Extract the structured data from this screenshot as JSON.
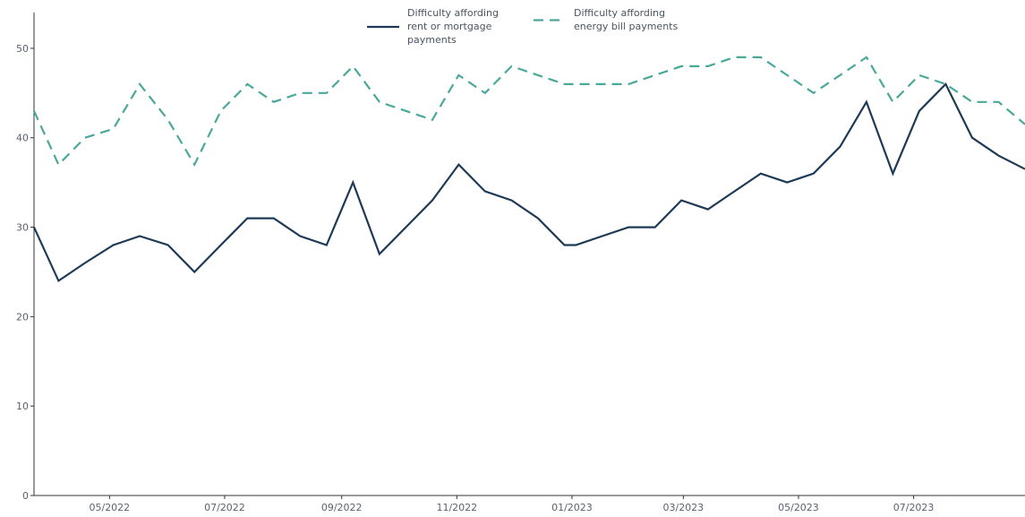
{
  "chart_data": {
    "type": "line",
    "x": [
      "2022-03-22",
      "2022-04-04",
      "2022-04-18",
      "2022-05-03",
      "2022-05-17",
      "2022-06-01",
      "2022-06-15",
      "2022-06-29",
      "2022-07-13",
      "2022-07-27",
      "2022-08-10",
      "2022-08-24",
      "2022-09-07",
      "2022-09-21",
      "2022-10-05",
      "2022-10-19",
      "2022-11-02",
      "2022-11-16",
      "2022-11-30",
      "2022-12-14",
      "2022-12-28",
      "2023-01-03",
      "2023-01-17",
      "2023-01-31",
      "2023-02-14",
      "2023-02-28",
      "2023-03-14",
      "2023-03-28",
      "2023-04-11",
      "2023-04-25",
      "2023-05-09",
      "2023-05-23",
      "2023-06-06",
      "2023-06-20",
      "2023-07-04",
      "2023-07-18",
      "2023-08-01",
      "2023-08-15",
      "2023-08-29"
    ],
    "series": [
      {
        "name": "Difficulty affording rent or mortgage payments",
        "style": "solid",
        "color": "#1e3a56",
        "values": [
          30,
          24,
          26,
          28,
          29,
          28,
          25,
          28,
          31,
          31,
          29,
          28,
          35,
          27,
          30,
          33,
          37,
          34,
          33,
          31,
          28,
          28,
          29,
          30,
          30,
          33,
          32,
          34,
          36,
          35,
          36,
          39,
          44,
          36,
          43,
          46,
          40,
          38,
          36.5
        ]
      },
      {
        "name": "Difficulty affording energy bill payments",
        "style": "dashed",
        "color": "#4aa89a",
        "values": [
          43,
          37,
          40,
          41,
          46,
          42,
          37,
          43,
          46,
          44,
          45,
          45,
          48,
          44,
          43,
          42,
          47,
          45,
          48,
          47,
          46,
          46,
          46,
          46,
          47,
          48,
          48,
          49,
          49,
          47,
          45,
          47,
          49,
          44,
          47,
          46,
          44,
          44,
          41.5
        ]
      }
    ],
    "legend": {
      "placement": "top-center",
      "labels": [
        [
          "Difficulty affording",
          "rent or mortgage",
          "payments"
        ],
        [
          "Difficulty affording",
          "energy bill payments"
        ]
      ]
    },
    "x_tick_labels": [
      "05/2022",
      "07/2022",
      "09/2022",
      "11/2022",
      "01/2023",
      "03/2023",
      "05/2023",
      "07/2023"
    ],
    "x_tick_dates": [
      "2022-05-01",
      "2022-07-01",
      "2022-09-01",
      "2022-11-01",
      "2023-01-01",
      "2023-03-01",
      "2023-05-01",
      "2023-07-01"
    ],
    "y_tick_labels": [
      "0",
      "10",
      "20",
      "30",
      "40",
      "50"
    ],
    "y_tick_values": [
      0,
      10,
      20,
      30,
      40,
      50
    ],
    "ylim": [
      0,
      54
    ],
    "xlim": [
      "2022-03-22",
      "2023-08-29"
    ],
    "grid": false
  }
}
